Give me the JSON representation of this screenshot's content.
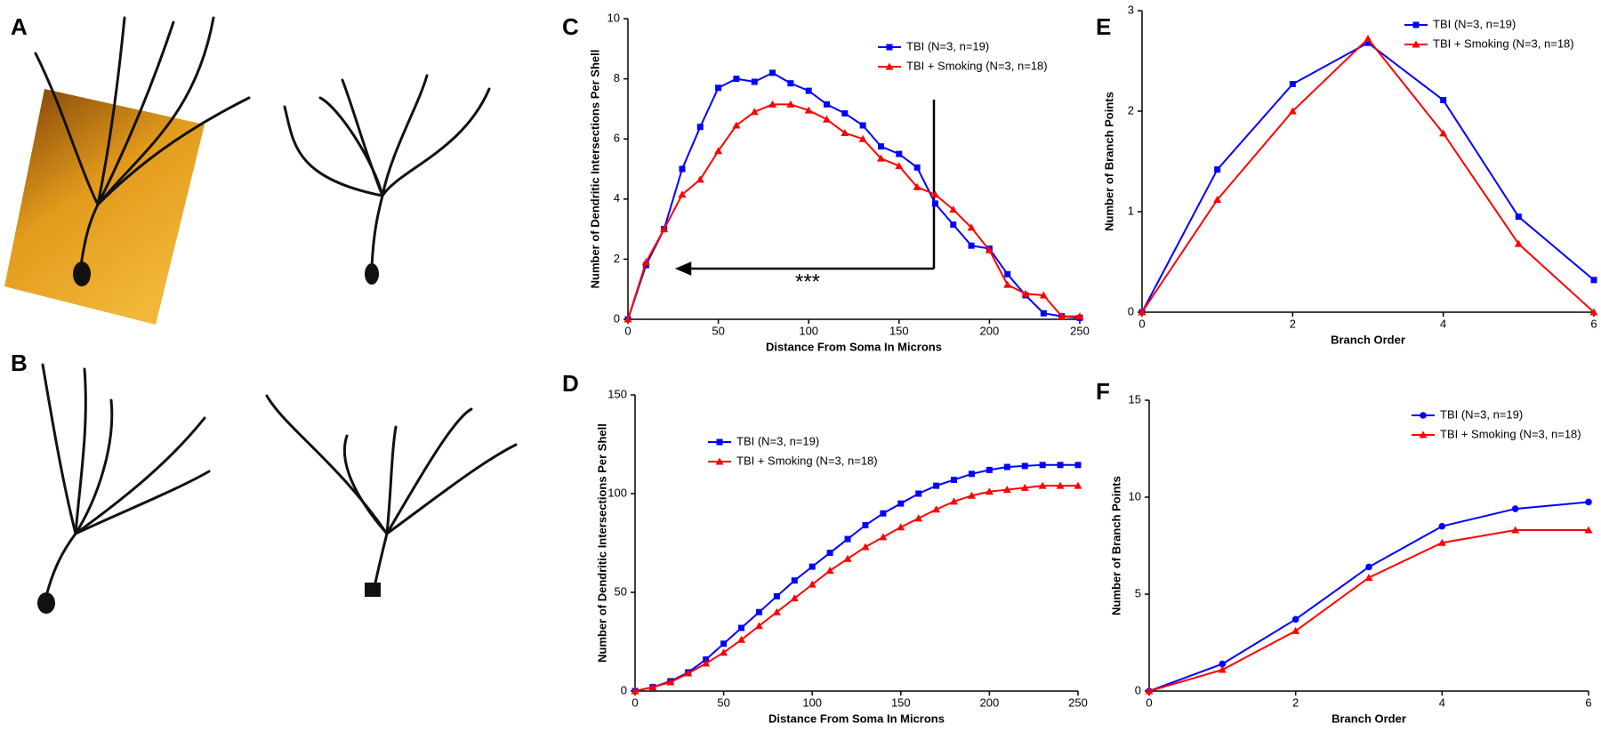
{
  "figure_panels": [
    "A",
    "B"
  ],
  "chart_data": [
    {
      "type": "line",
      "panel": "C",
      "xlabel": "Distance From Soma In Microns",
      "ylabel": "Number of Dendritic Intersections Per Shell",
      "annotation": "***",
      "x": [
        0,
        10,
        20,
        30,
        40,
        50,
        60,
        70,
        80,
        90,
        100,
        110,
        120,
        130,
        140,
        150,
        160,
        170,
        180,
        190,
        200,
        210,
        220,
        230,
        240,
        250
      ],
      "xlim": [
        0,
        250
      ],
      "xticks": [
        0,
        50,
        100,
        150,
        200,
        250
      ],
      "ylim": [
        0,
        10
      ],
      "yticks": [
        0,
        2,
        4,
        6,
        8,
        10
      ],
      "series": [
        {
          "name": "TBI (N=3, n=19)",
          "color": "#0000ff",
          "marker": "square",
          "values": [
            0,
            1.8,
            3.0,
            5.0,
            6.4,
            7.7,
            8.0,
            7.9,
            8.2,
            7.85,
            7.6,
            7.15,
            6.85,
            6.45,
            5.75,
            5.5,
            5.05,
            3.85,
            3.15,
            2.45,
            2.35,
            1.5,
            0.8,
            0.2,
            0.1,
            0.05
          ]
        },
        {
          "name": "TBI + Smoking (N=3, n=18)",
          "color": "#ff0000",
          "marker": "triangle",
          "values": [
            0,
            1.9,
            3.0,
            4.15,
            4.65,
            5.6,
            6.45,
            6.9,
            7.15,
            7.15,
            6.95,
            6.65,
            6.2,
            6.0,
            5.35,
            5.1,
            4.4,
            4.15,
            3.65,
            3.05,
            2.3,
            1.15,
            0.85,
            0.8,
            0.1,
            0.1
          ]
        }
      ]
    },
    {
      "type": "line",
      "panel": "D",
      "xlabel": "Distance From Soma In Microns",
      "ylabel": "Number of Dendritic Intersections Per Shell",
      "x": [
        0,
        10,
        20,
        30,
        40,
        50,
        60,
        70,
        80,
        90,
        100,
        110,
        120,
        130,
        140,
        150,
        160,
        170,
        180,
        190,
        200,
        210,
        220,
        230,
        240,
        250
      ],
      "xlim": [
        0,
        250
      ],
      "xticks": [
        0,
        50,
        100,
        150,
        200,
        250
      ],
      "ylim": [
        0,
        150
      ],
      "yticks": [
        0,
        50,
        100,
        150
      ],
      "series": [
        {
          "name": "TBI (N=3, n=19)",
          "color": "#0000ff",
          "marker": "square",
          "values": [
            0,
            2,
            5,
            9.5,
            16,
            24,
            32,
            40,
            48,
            56,
            63,
            70,
            77,
            84,
            90,
            95,
            100,
            104,
            107,
            110,
            112,
            113.5,
            114,
            114.5,
            114.5,
            114.5
          ]
        },
        {
          "name": "TBI + Smoking (N=3, n=18)",
          "color": "#ff0000",
          "marker": "triangle",
          "values": [
            0,
            2,
            4.5,
            9,
            14,
            19.5,
            26,
            33,
            40,
            47,
            54,
            61,
            67,
            73,
            78,
            83,
            87.5,
            92,
            96,
            99,
            101,
            102,
            103,
            104,
            104,
            104
          ]
        }
      ]
    },
    {
      "type": "line",
      "panel": "E",
      "xlabel": "Branch Order",
      "ylabel": "Number of Branch Points",
      "x": [
        0,
        1,
        2,
        3,
        4,
        5,
        6
      ],
      "xlim": [
        0,
        6
      ],
      "xticks": [
        0,
        2,
        4,
        6
      ],
      "ylim": [
        0,
        3
      ],
      "yticks": [
        0,
        1,
        2,
        3
      ],
      "series": [
        {
          "name": "TBI (N=3, n=19)",
          "color": "#0000ff",
          "marker": "square",
          "values": [
            0,
            1.42,
            2.27,
            2.68,
            2.11,
            0.95,
            0.32
          ]
        },
        {
          "name": "TBI + Smoking (N=3, n=18)",
          "color": "#ff0000",
          "marker": "triangle",
          "values": [
            0,
            1.12,
            2.0,
            2.72,
            1.78,
            0.68,
            0.0
          ]
        }
      ]
    },
    {
      "type": "line",
      "panel": "F",
      "xlabel": "Branch Order",
      "ylabel": "Number of Branch Points",
      "x": [
        0,
        1,
        2,
        3,
        4,
        5,
        6
      ],
      "xlim": [
        0,
        6
      ],
      "xticks": [
        0,
        2,
        4,
        6
      ],
      "ylim": [
        0,
        15
      ],
      "yticks": [
        0,
        5,
        10,
        15
      ],
      "series": [
        {
          "name": "TBI (N=3, n=19)",
          "color": "#0000ff",
          "marker": "circle",
          "values": [
            0,
            1.4,
            3.7,
            6.4,
            8.5,
            9.4,
            9.75
          ]
        },
        {
          "name": "TBI + Smoking (N=3, n=18)",
          "color": "#ff0000",
          "marker": "triangle",
          "values": [
            0,
            1.1,
            3.1,
            5.85,
            7.65,
            8.3,
            8.3
          ]
        }
      ]
    }
  ]
}
